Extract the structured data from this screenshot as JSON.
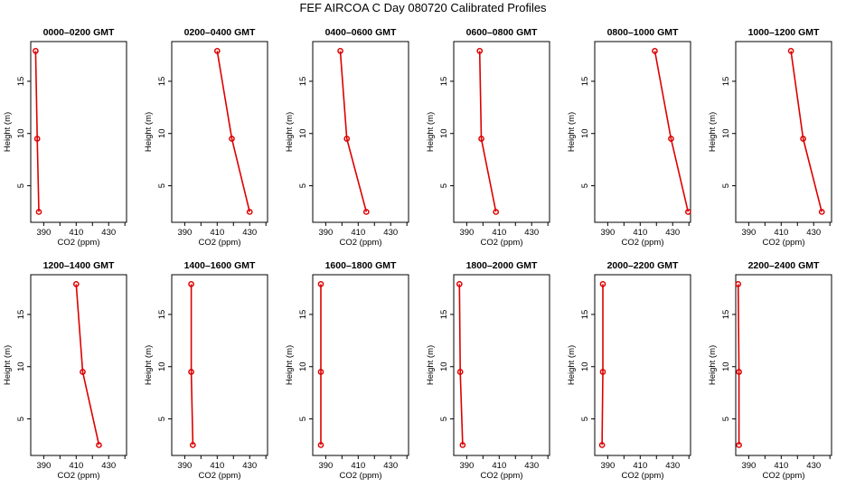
{
  "title": "FEF AIRCOA C  Day 080720  Calibrated Profiles",
  "colors": {
    "line": "#dd0000",
    "marker": "#dd0000",
    "axis": "#000000"
  },
  "chart_data": {
    "type": "line",
    "xlabel": "CO2 (ppm)",
    "ylabel": "Height (m)",
    "xlim": [
      382,
      441
    ],
    "ylim": [
      1.5,
      18.8
    ],
    "xticks": [
      390,
      400,
      410,
      420,
      430,
      440
    ],
    "xtick_labels": [
      "390",
      "",
      "410",
      "",
      "430",
      ""
    ],
    "yticks": [
      5,
      10,
      15
    ],
    "ytick_labels": [
      "5",
      "10",
      "15"
    ],
    "heights": [
      17.9,
      9.5,
      2.5
    ],
    "panels": [
      {
        "title": "0000–0200 GMT",
        "values": [
          385.0,
          386.0,
          387.0
        ]
      },
      {
        "title": "0200–0400 GMT",
        "values": [
          410.0,
          419.0,
          430.0
        ]
      },
      {
        "title": "0400–0600 GMT",
        "values": [
          399.0,
          403.0,
          415.0
        ]
      },
      {
        "title": "0600–0800 GMT",
        "values": [
          398.0,
          399.0,
          408.0
        ]
      },
      {
        "title": "0800–1000 GMT",
        "values": [
          419.0,
          429.0,
          439.5
        ]
      },
      {
        "title": "1000–1200 GMT",
        "values": [
          416.0,
          423.5,
          435.0
        ]
      },
      {
        "title": "1200–1400 GMT",
        "values": [
          410.0,
          414.0,
          424.0
        ]
      },
      {
        "title": "1400–1600 GMT",
        "values": [
          394.0,
          394.0,
          395.0
        ]
      },
      {
        "title": "1600–1800 GMT",
        "values": [
          387.0,
          387.0,
          387.0
        ]
      },
      {
        "title": "1800–2000 GMT",
        "values": [
          385.5,
          386.0,
          387.5
        ]
      },
      {
        "title": "2000–2200 GMT",
        "values": [
          387.0,
          387.0,
          386.5
        ]
      },
      {
        "title": "2200–2400 GMT",
        "values": [
          383.5,
          384.0,
          384.0
        ]
      }
    ]
  }
}
